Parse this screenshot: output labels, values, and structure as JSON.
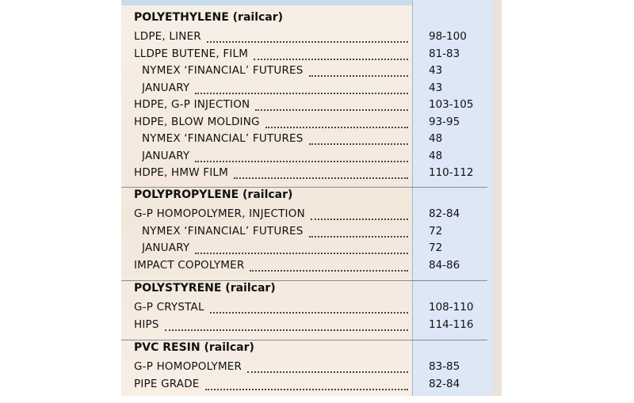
{
  "sections": [
    {
      "header": "POLYETHYLENE (railcar)",
      "rows": [
        {
          "label": "LDPE, LINER",
          "value": "98-100",
          "indent": false
        },
        {
          "label": "LLDPE BUTENE, FILM",
          "value": "81-83",
          "indent": false
        },
        {
          "label": "NYMEX ‘FINANCIAL’ FUTURES",
          "value": "43",
          "indent": true
        },
        {
          "label": "JANUARY",
          "value": "43",
          "indent": true
        },
        {
          "label": "HDPE, G-P INJECTION",
          "value": "103-105",
          "indent": false
        },
        {
          "label": "HDPE, BLOW MOLDING",
          "value": "93-95",
          "indent": false
        },
        {
          "label": "NYMEX ‘FINANCIAL’ FUTURES",
          "value": "48",
          "indent": true
        },
        {
          "label": "JANUARY",
          "value": "48",
          "indent": true
        },
        {
          "label": "HDPE, HMW FILM",
          "value": "110-112",
          "indent": false
        }
      ]
    },
    {
      "header": "POLYPROPYLENE (railcar)",
      "rows": [
        {
          "label": "G-P HOMOPOLYMER, INJECTION",
          "value": "82-84",
          "indent": false
        },
        {
          "label": "NYMEX ‘FINANCIAL’ FUTURES",
          "value": "72",
          "indent": true
        },
        {
          "label": "JANUARY",
          "value": "72",
          "indent": true
        },
        {
          "label": "IMPACT COPOLYMER",
          "value": "84-86",
          "indent": false
        }
      ]
    },
    {
      "header": "POLYSTYRENE (railcar)",
      "rows": [
        {
          "label": "G-P CRYSTAL",
          "value": "108-110",
          "indent": false
        },
        {
          "label": "HIPS",
          "value": "114-116",
          "indent": false
        }
      ]
    },
    {
      "header": "PVC RESIN (railcar)",
      "rows": [
        {
          "label": "G-P HOMOPOLYMER",
          "value": "83-85",
          "indent": false
        },
        {
          "label": "PIPE GRADE",
          "value": "82-84",
          "indent": false
        }
      ]
    }
  ]
}
